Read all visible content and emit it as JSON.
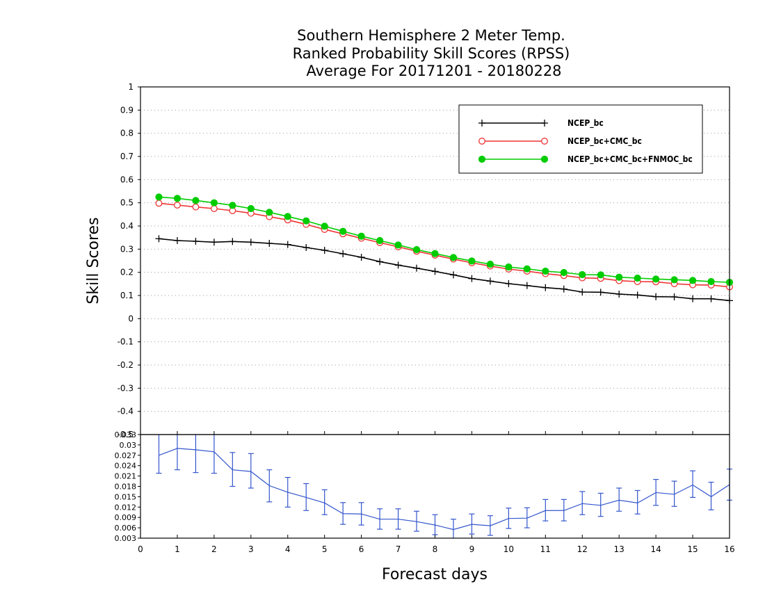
{
  "chart_data": [
    {
      "type": "line",
      "title": [
        "Southern Hemisphere 2 Meter Temp.",
        "Ranked Probability Skill Scores (RPSS)",
        "Average For 20171201 - 20180228"
      ],
      "ylabel": "Skill Scores",
      "xlabel": "Forecast days",
      "xlim": [
        0,
        16
      ],
      "ylim": [
        -0.5,
        1
      ],
      "x_ticks": [
        "0",
        "1",
        "2",
        "3",
        "4",
        "5",
        "6",
        "7",
        "8",
        "9",
        "10",
        "11",
        "12",
        "13",
        "14",
        "15",
        "16"
      ],
      "y_ticks": [
        "1",
        "0.9",
        "0.8",
        "0.7",
        "0.6",
        "0.5",
        "0.4",
        "0.3",
        "0.2",
        "0.1",
        "0",
        "-0.1",
        "-0.2",
        "-0.3",
        "-0.4",
        "-0.5"
      ],
      "grid": true,
      "legend_position": "top-right",
      "x": [
        0.5,
        1,
        1.5,
        2,
        2.5,
        3,
        3.5,
        4,
        4.5,
        5,
        5.5,
        6,
        6.5,
        7,
        7.5,
        8,
        8.5,
        9,
        9.5,
        10,
        10.5,
        11,
        11.5,
        12,
        12.5,
        13,
        13.5,
        14,
        14.5,
        15,
        15.5,
        16
      ],
      "series": [
        {
          "name": "NCEP_bc",
          "color": "#000000",
          "marker": "plus",
          "values": [
            0.345,
            0.337,
            0.334,
            0.33,
            0.333,
            0.33,
            0.325,
            0.32,
            0.307,
            0.295,
            0.28,
            0.265,
            0.246,
            0.231,
            0.218,
            0.204,
            0.189,
            0.173,
            0.162,
            0.151,
            0.143,
            0.134,
            0.128,
            0.115,
            0.114,
            0.106,
            0.102,
            0.095,
            0.094,
            0.086,
            0.086,
            0.078
          ]
        },
        {
          "name": "NCEP_bc+CMC_bc",
          "color": "#ee3333",
          "marker": "open-circle",
          "values": [
            0.498,
            0.49,
            0.482,
            0.475,
            0.466,
            0.455,
            0.44,
            0.426,
            0.407,
            0.385,
            0.366,
            0.347,
            0.328,
            0.31,
            0.291,
            0.274,
            0.257,
            0.241,
            0.227,
            0.214,
            0.205,
            0.194,
            0.186,
            0.176,
            0.174,
            0.164,
            0.16,
            0.159,
            0.151,
            0.146,
            0.145,
            0.137
          ]
        },
        {
          "name": "NCEP_bc+CMC_bc+FNMOC_bc",
          "color": "#00cc00",
          "marker": "filled-circle",
          "values": [
            0.525,
            0.519,
            0.51,
            0.5,
            0.489,
            0.475,
            0.459,
            0.441,
            0.422,
            0.399,
            0.377,
            0.356,
            0.337,
            0.318,
            0.298,
            0.281,
            0.264,
            0.249,
            0.235,
            0.223,
            0.215,
            0.205,
            0.199,
            0.19,
            0.189,
            0.179,
            0.175,
            0.171,
            0.168,
            0.165,
            0.16,
            0.157
          ]
        }
      ]
    },
    {
      "type": "line",
      "xlim": [
        0,
        16
      ],
      "ylim": [
        0.003,
        0.033
      ],
      "y_ticks": [
        "0.033",
        "0.03",
        "0.027",
        "0.024",
        "0.021",
        "0.018",
        "0.015",
        "0.012",
        "0.009",
        "0.006",
        "0.003"
      ],
      "grid": false,
      "x": [
        0.5,
        1,
        1.5,
        2,
        2.5,
        3,
        3.5,
        4,
        4.5,
        5,
        5.5,
        6,
        6.5,
        7,
        7.5,
        8,
        8.5,
        9,
        9.5,
        10,
        10.5,
        11,
        11.5,
        12,
        12.5,
        13,
        13.5,
        14,
        14.5,
        15,
        15.5,
        16
      ],
      "series": [
        {
          "color": "#3355cc",
          "marker": "error-bars",
          "values": [
            0.027,
            0.029,
            0.0286,
            0.028,
            0.0228,
            0.0223,
            0.0182,
            0.0163,
            0.0148,
            0.0132,
            0.0101,
            0.01,
            0.0085,
            0.0085,
            0.0078,
            0.0068,
            0.0055,
            0.007,
            0.0066,
            0.0087,
            0.0088,
            0.011,
            0.011,
            0.013,
            0.0125,
            0.014,
            0.0132,
            0.0162,
            0.0157,
            0.0184,
            0.015,
            0.0185
          ],
          "lower": [
            0.0218,
            0.0228,
            0.022,
            0.0218,
            0.018,
            0.0175,
            0.0135,
            0.012,
            0.011,
            0.0098,
            0.007,
            0.0068,
            0.0056,
            0.0056,
            0.005,
            0.004,
            0.0028,
            0.0042,
            0.0038,
            0.0058,
            0.006,
            0.008,
            0.008,
            0.0098,
            0.0093,
            0.0108,
            0.01,
            0.0125,
            0.0122,
            0.0148,
            0.0112,
            0.014
          ],
          "upper": [
            0.033,
            0.0345,
            0.0345,
            0.0342,
            0.0278,
            0.0275,
            0.0228,
            0.0206,
            0.0188,
            0.017,
            0.0133,
            0.0133,
            0.0115,
            0.0115,
            0.0108,
            0.0098,
            0.0085,
            0.01,
            0.0095,
            0.0117,
            0.0118,
            0.0142,
            0.0142,
            0.0165,
            0.016,
            0.0175,
            0.0168,
            0.02,
            0.0195,
            0.0225,
            0.0192,
            0.023
          ]
        }
      ]
    }
  ]
}
